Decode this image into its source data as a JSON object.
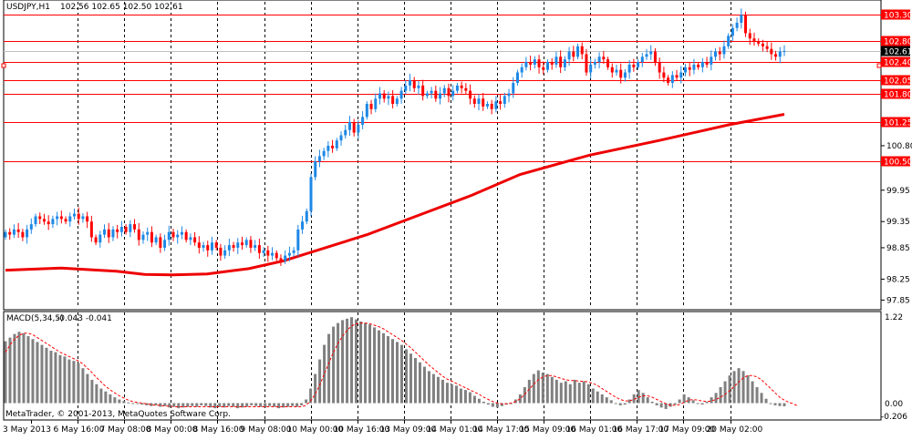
{
  "window": {
    "symbol_label": "USDJPY,H1",
    "ohlc_label": "102.56 102.65 102.50 102.61"
  },
  "indicator": {
    "label": "MACD(5,34,5)",
    "values_label": "-0.043 -0.041",
    "scale_top": "1.22",
    "scale_zero": "0.00",
    "scale_bottom": "-0.206"
  },
  "copyright": "MetaTrader, © 2001-2013, MetaQuotes Software Corp.",
  "colors": {
    "bull": "#1e88e5",
    "bear": "#ff0000",
    "ma": "#ee0000",
    "hline": "#ff0000",
    "macd_bar": "#808080",
    "signal": "#ff0000",
    "current_price_bg": "#000000"
  },
  "chart_data": [
    {
      "type": "candlestick",
      "title": "USDJPY,H1",
      "ylim": [
        97.7,
        103.55
      ],
      "y_ticks": [
        "103.30",
        "102.80",
        "102.61",
        "102.40",
        "102.05",
        "101.80",
        "101.25",
        "100.80",
        "100.50",
        "99.95",
        "99.35",
        "98.85",
        "98.25",
        "97.85"
      ],
      "x_ticks": [
        "3 May 2013",
        "6 May 16:00",
        "7 May 08:00",
        "8 May 00:00",
        "8 May 16:00",
        "9 May 08:00",
        "10 May 00:00",
        "10 May 16:00",
        "13 May 09:00",
        "14 May 01:00",
        "14 May 17:00",
        "15 May 09:00",
        "16 May 01:00",
        "16 May 17:00",
        "17 May 09:00",
        "20 May 02:00"
      ],
      "price_lines": [
        {
          "value": 103.3,
          "label": "103.30"
        },
        {
          "value": 102.8,
          "label": "102.80"
        },
        {
          "value": 102.4,
          "label": "102.40"
        },
        {
          "value": 102.05,
          "label": "102.05"
        },
        {
          "value": 101.8,
          "label": "101.80"
        },
        {
          "value": 101.25,
          "label": "101.25"
        },
        {
          "value": 100.5,
          "label": "100.50"
        }
      ],
      "current_price": {
        "value": 102.61,
        "label": "102.61"
      },
      "close_series": [
        99.15,
        99.1,
        99.2,
        99.15,
        99.05,
        99.2,
        99.3,
        99.45,
        99.4,
        99.35,
        99.3,
        99.4,
        99.45,
        99.4,
        99.35,
        99.45,
        99.5,
        99.4,
        99.45,
        99.35,
        99.05,
        98.95,
        99.1,
        99.2,
        99.05,
        99.2,
        99.15,
        99.25,
        99.15,
        99.3,
        99.2,
        99.0,
        99.1,
        99.15,
        98.95,
        99.05,
        98.85,
        99.0,
        99.15,
        99.05,
        99.1,
        99.15,
        99.0,
        99.05,
        98.95,
        98.85,
        98.9,
        98.8,
        98.95,
        98.85,
        98.7,
        98.8,
        98.9,
        98.85,
        98.95,
        98.9,
        99.0,
        98.85,
        98.9,
        98.75,
        98.8,
        98.7,
        98.75,
        98.65,
        98.6,
        98.7,
        98.75,
        98.8,
        99.2,
        99.35,
        99.55,
        100.2,
        100.5,
        100.6,
        100.7,
        100.8,
        100.75,
        100.9,
        101.0,
        101.1,
        101.25,
        101.05,
        101.2,
        101.35,
        101.6,
        101.5,
        101.7,
        101.8,
        101.7,
        101.75,
        101.6,
        101.7,
        101.85,
        101.95,
        102.05,
        101.9,
        101.95,
        101.75,
        101.8,
        101.85,
        101.7,
        101.8,
        101.9,
        101.75,
        101.85,
        101.95,
        101.9,
        101.85,
        101.7,
        101.6,
        101.7,
        101.55,
        101.6,
        101.5,
        101.65,
        101.6,
        101.75,
        101.8,
        102.0,
        102.2,
        102.3,
        102.4,
        102.35,
        102.45,
        102.3,
        102.25,
        102.4,
        102.35,
        102.5,
        102.3,
        102.45,
        102.6,
        102.5,
        102.7,
        102.55,
        102.2,
        102.35,
        102.4,
        102.5,
        102.45,
        102.3,
        102.2,
        102.25,
        102.1,
        102.2,
        102.35,
        102.3,
        102.4,
        102.5,
        102.55,
        102.6,
        102.4,
        102.2,
        102.1,
        102.0,
        102.15,
        102.1,
        102.2,
        102.3,
        102.25,
        102.35,
        102.3,
        102.4,
        102.35,
        102.5,
        102.6,
        102.55,
        102.7,
        102.9,
        103.05,
        103.15,
        103.3,
        102.95,
        102.85,
        102.8,
        102.75,
        102.7,
        102.65,
        102.55,
        102.5,
        102.6,
        102.61
      ],
      "moving_average": [
        {
          "x": 0,
          "y": 98.42
        },
        {
          "x": 40,
          "y": 98.46
        },
        {
          "x": 80,
          "y": 98.4
        },
        {
          "x": 100,
          "y": 98.34
        },
        {
          "x": 120,
          "y": 98.33
        },
        {
          "x": 145,
          "y": 98.35
        },
        {
          "x": 175,
          "y": 98.45
        },
        {
          "x": 200,
          "y": 98.6
        },
        {
          "x": 260,
          "y": 99.1
        },
        {
          "x": 300,
          "y": 99.5
        },
        {
          "x": 335,
          "y": 99.85
        },
        {
          "x": 370,
          "y": 100.25
        },
        {
          "x": 420,
          "y": 100.62
        },
        {
          "x": 470,
          "y": 100.9
        },
        {
          "x": 520,
          "y": 101.2
        },
        {
          "x": 560,
          "y": 101.4
        }
      ]
    },
    {
      "type": "histogram",
      "title": "MACD(5,34,5)",
      "ylim": [
        -0.206,
        1.22
      ],
      "macd": [
        0.85,
        0.9,
        0.95,
        0.98,
        0.96,
        0.92,
        0.88,
        0.84,
        0.8,
        0.76,
        0.72,
        0.7,
        0.66,
        0.64,
        0.6,
        0.58,
        0.55,
        0.48,
        0.4,
        0.32,
        0.26,
        0.2,
        0.16,
        0.12,
        0.08,
        0.05,
        0.03,
        0.01,
        0.0,
        -0.01,
        -0.02,
        -0.03,
        -0.04,
        -0.03,
        -0.05,
        -0.04,
        -0.06,
        -0.05,
        -0.07,
        -0.06,
        -0.05,
        -0.04,
        -0.05,
        -0.03,
        -0.04,
        -0.06,
        -0.07,
        -0.05,
        -0.06,
        -0.04,
        -0.05,
        -0.07,
        -0.06,
        -0.05,
        -0.03,
        -0.04,
        -0.05,
        -0.06,
        -0.04,
        -0.05,
        -0.07,
        -0.06,
        -0.05,
        -0.04,
        -0.05,
        -0.03,
        0.05,
        0.2,
        0.4,
        0.6,
        0.8,
        0.95,
        1.05,
        1.1,
        1.14,
        1.16,
        1.18,
        1.15,
        1.12,
        1.1,
        1.08,
        1.04,
        1.0,
        0.96,
        0.92,
        0.88,
        0.84,
        0.8,
        0.74,
        0.68,
        0.62,
        0.56,
        0.5,
        0.44,
        0.4,
        0.36,
        0.32,
        0.28,
        0.26,
        0.24,
        0.2,
        0.18,
        0.15,
        0.1,
        0.06,
        0.02,
        -0.02,
        -0.05,
        -0.06,
        -0.04,
        -0.02,
        0.0,
        0.05,
        0.12,
        0.22,
        0.32,
        0.4,
        0.45,
        0.42,
        0.4,
        0.36,
        0.32,
        0.28,
        0.3,
        0.26,
        0.32,
        0.28,
        0.3,
        0.26,
        0.2,
        0.16,
        0.12,
        0.08,
        0.04,
        0.0,
        -0.03,
        -0.02,
        0.05,
        0.12,
        0.18,
        0.14,
        0.08,
        0.02,
        -0.03,
        -0.06,
        -0.08,
        -0.05,
        -0.02,
        0.05,
        0.12,
        0.08,
        0.04,
        0.0,
        -0.02,
        0.02,
        0.08,
        0.14,
        0.22,
        0.3,
        0.38,
        0.44,
        0.48,
        0.44,
        0.38,
        0.3,
        0.22,
        0.14,
        0.06,
        0.0,
        -0.03,
        -0.04,
        -0.043
      ],
      "signal": [
        0.7,
        0.8,
        0.88,
        0.93,
        0.96,
        0.96,
        0.94,
        0.9,
        0.86,
        0.82,
        0.78,
        0.74,
        0.7,
        0.67,
        0.64,
        0.61,
        0.58,
        0.54,
        0.48,
        0.42,
        0.35,
        0.29,
        0.23,
        0.18,
        0.14,
        0.1,
        0.07,
        0.04,
        0.02,
        0.01,
        0.0,
        -0.01,
        -0.02,
        -0.03,
        -0.03,
        -0.04,
        -0.04,
        -0.05,
        -0.05,
        -0.05,
        -0.05,
        -0.05,
        -0.05,
        -0.05,
        -0.05,
        -0.05,
        -0.05,
        -0.05,
        -0.05,
        -0.05,
        -0.05,
        -0.05,
        -0.05,
        -0.05,
        -0.05,
        -0.05,
        -0.05,
        -0.05,
        -0.05,
        -0.05,
        -0.05,
        -0.05,
        -0.05,
        -0.05,
        -0.05,
        -0.05,
        -0.03,
        0.03,
        0.12,
        0.25,
        0.4,
        0.55,
        0.7,
        0.82,
        0.92,
        1.0,
        1.06,
        1.09,
        1.1,
        1.1,
        1.09,
        1.07,
        1.05,
        1.02,
        0.98,
        0.94,
        0.9,
        0.86,
        0.81,
        0.76,
        0.7,
        0.64,
        0.58,
        0.52,
        0.47,
        0.42,
        0.37,
        0.33,
        0.3,
        0.27,
        0.24,
        0.21,
        0.18,
        0.15,
        0.12,
        0.08,
        0.05,
        0.02,
        0.0,
        -0.01,
        -0.01,
        0.0,
        0.02,
        0.06,
        0.12,
        0.19,
        0.26,
        0.32,
        0.36,
        0.38,
        0.38,
        0.36,
        0.34,
        0.32,
        0.31,
        0.31,
        0.3,
        0.3,
        0.29,
        0.27,
        0.24,
        0.2,
        0.16,
        0.12,
        0.08,
        0.05,
        0.03,
        0.03,
        0.05,
        0.08,
        0.1,
        0.1,
        0.08,
        0.05,
        0.02,
        -0.01,
        -0.03,
        -0.03,
        -0.02,
        0.01,
        0.04,
        0.05,
        0.04,
        0.03,
        0.02,
        0.03,
        0.05,
        0.08,
        0.12,
        0.17,
        0.23,
        0.29,
        0.35,
        0.38,
        0.38,
        0.36,
        0.32,
        0.26,
        0.2,
        0.14,
        0.08,
        0.04,
        0.01,
        -0.01,
        -0.041
      ]
    }
  ]
}
